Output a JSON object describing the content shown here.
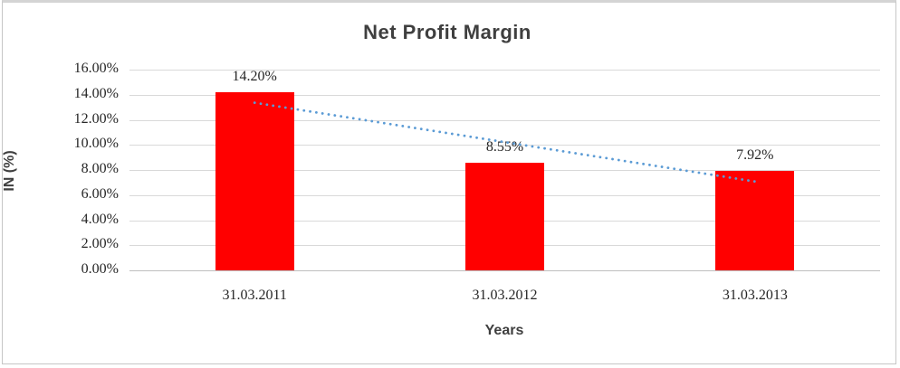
{
  "chart_data": {
    "type": "bar",
    "title": "Net Profit Margin",
    "xlabel": "Years",
    "ylabel": "IN (%)",
    "categories": [
      "31.03.2011",
      "31.03.2012",
      "31.03.2013"
    ],
    "series": [
      {
        "name": "Net Profit Margin",
        "values": [
          14.2,
          8.55,
          7.92
        ]
      }
    ],
    "data_labels": [
      "14.20%",
      "8.55%",
      "7.92%"
    ],
    "y_ticks": [
      "16.00%",
      "14.00%",
      "12.00%",
      "10.00%",
      "8.00%",
      "6.00%",
      "4.00%",
      "2.00%",
      "0.00%"
    ],
    "ylim": [
      0,
      16
    ],
    "y_tick_step": 2,
    "grid": true,
    "legend": "none",
    "trendline": {
      "type": "linear",
      "style": "dotted",
      "values": [
        13.36,
        10.22,
        7.08
      ]
    },
    "colors": {
      "bar": "#FF0000",
      "trendline": "#5B9BD5",
      "gridline": "#D9D9D9",
      "axis_line": "#BFBFBF",
      "text": "#262626",
      "title_text": "#3F3F3F"
    }
  }
}
